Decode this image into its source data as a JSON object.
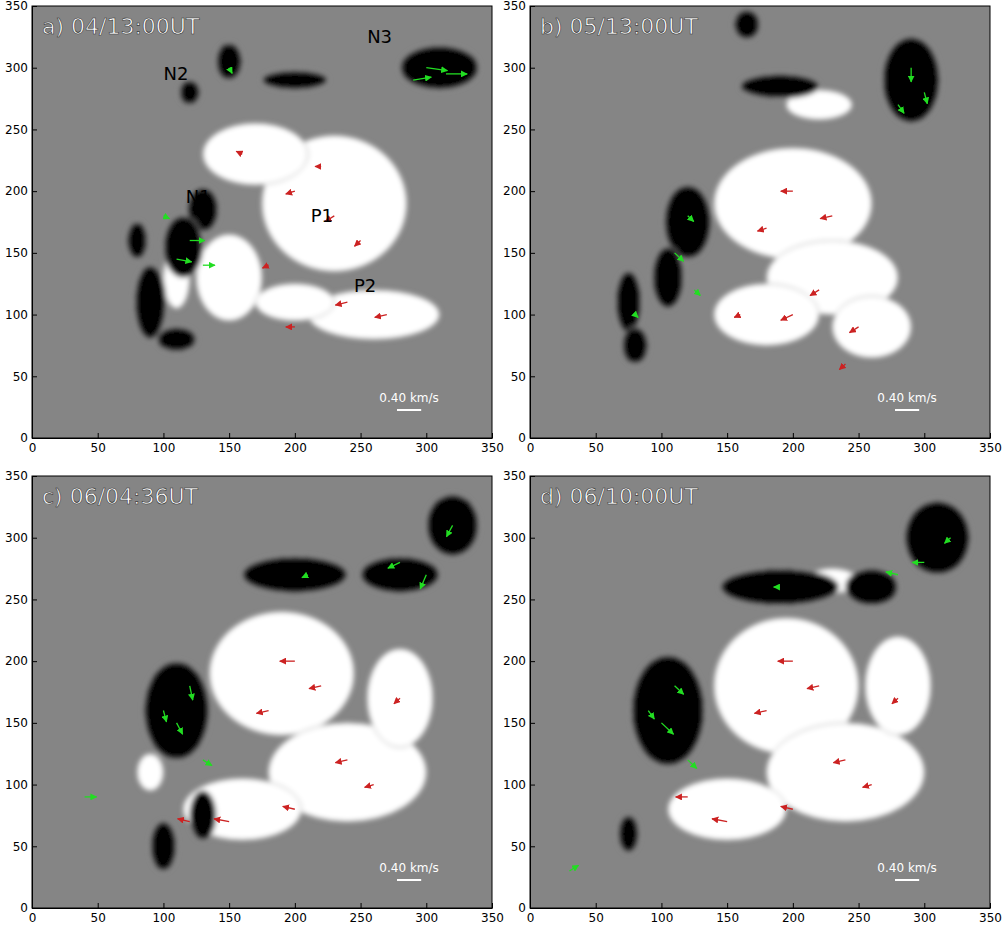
{
  "chart_data": [
    {
      "type": "vector_field",
      "title": "a) 04/13:00UT",
      "xlim": [
        0,
        350
      ],
      "ylim": [
        0,
        350
      ],
      "xticks": [
        0,
        50,
        100,
        150,
        200,
        250,
        300,
        350
      ],
      "yticks": [
        0,
        50,
        100,
        150,
        200,
        250,
        300,
        350
      ],
      "patches": [
        {
          "x": 230,
          "y": 190,
          "rx": 55,
          "ry": 55,
          "color": "white"
        },
        {
          "x": 170,
          "y": 230,
          "rx": 40,
          "ry": 25,
          "color": "white"
        },
        {
          "x": 150,
          "y": 130,
          "rx": 25,
          "ry": 35,
          "color": "white"
        },
        {
          "x": 260,
          "y": 100,
          "rx": 50,
          "ry": 20,
          "color": "white"
        },
        {
          "x": 200,
          "y": 110,
          "rx": 30,
          "ry": 15,
          "color": "white"
        },
        {
          "x": 110,
          "y": 130,
          "rx": 10,
          "ry": 25,
          "color": "white"
        },
        {
          "x": 310,
          "y": 300,
          "rx": 30,
          "ry": 18,
          "color": "black"
        },
        {
          "x": 150,
          "y": 305,
          "rx": 10,
          "ry": 15,
          "color": "black"
        },
        {
          "x": 120,
          "y": 280,
          "rx": 8,
          "ry": 10,
          "color": "black"
        },
        {
          "x": 200,
          "y": 290,
          "rx": 25,
          "ry": 8,
          "color": "black"
        },
        {
          "x": 130,
          "y": 185,
          "rx": 12,
          "ry": 18,
          "color": "black"
        },
        {
          "x": 115,
          "y": 155,
          "rx": 15,
          "ry": 25,
          "color": "black"
        },
        {
          "x": 80,
          "y": 160,
          "rx": 8,
          "ry": 15,
          "color": "black"
        },
        {
          "x": 90,
          "y": 110,
          "rx": 12,
          "ry": 30,
          "color": "black"
        },
        {
          "x": 110,
          "y": 80,
          "rx": 15,
          "ry": 10,
          "color": "black"
        }
      ],
      "vectors": [
        {
          "color": "#22dd22",
          "x": [
            300,
            315,
            290,
            120,
            110,
            130,
            100,
            150
          ],
          "y": [
            300,
            295,
            290,
            160,
            145,
            140,
            180,
            300
          ],
          "u": [
            0.35,
            0.35,
            0.3,
            0.25,
            0.25,
            0.2,
            0.1,
            0.05
          ],
          "v": [
            -0.05,
            0,
            0.05,
            0,
            -0.05,
            0,
            -0.05,
            -0.1
          ]
        },
        {
          "color": "#cc2222",
          "x": [
            200,
            230,
            250,
            180,
            220,
            240,
            270,
            160,
            200
          ],
          "y": [
            200,
            180,
            160,
            140,
            220,
            110,
            100,
            230,
            90
          ],
          "u": [
            -0.15,
            -0.15,
            -0.1,
            -0.1,
            -0.1,
            -0.2,
            -0.2,
            -0.1,
            -0.15
          ],
          "v": [
            -0.05,
            -0.1,
            -0.1,
            -0.05,
            0,
            -0.05,
            -0.05,
            0.05,
            0
          ]
        }
      ],
      "labels": [
        {
          "text": "N1",
          "x": 117,
          "y": 190
        },
        {
          "text": "N2",
          "x": 100,
          "y": 290
        },
        {
          "text": "N3",
          "x": 255,
          "y": 320
        },
        {
          "text": "P1",
          "x": 212,
          "y": 175
        },
        {
          "text": "P2",
          "x": 245,
          "y": 118
        }
      ],
      "scale": {
        "value": 0.4,
        "label": "0.40 km/s"
      }
    },
    {
      "type": "vector_field",
      "title": "b) 05/13:00UT",
      "xlim": [
        0,
        350
      ],
      "ylim": [
        0,
        350
      ],
      "xticks": [
        0,
        50,
        100,
        150,
        200,
        250,
        300,
        350
      ],
      "yticks": [
        0,
        50,
        100,
        150,
        200,
        250,
        300,
        350
      ],
      "patches": [
        {
          "x": 200,
          "y": 190,
          "rx": 60,
          "ry": 45,
          "color": "white"
        },
        {
          "x": 230,
          "y": 130,
          "rx": 50,
          "ry": 30,
          "color": "white"
        },
        {
          "x": 180,
          "y": 100,
          "rx": 40,
          "ry": 25,
          "color": "white"
        },
        {
          "x": 260,
          "y": 90,
          "rx": 30,
          "ry": 25,
          "color": "white"
        },
        {
          "x": 220,
          "y": 270,
          "rx": 25,
          "ry": 12,
          "color": "white"
        },
        {
          "x": 290,
          "y": 290,
          "rx": 22,
          "ry": 35,
          "color": "black"
        },
        {
          "x": 165,
          "y": 335,
          "rx": 10,
          "ry": 12,
          "color": "black"
        },
        {
          "x": 190,
          "y": 285,
          "rx": 30,
          "ry": 10,
          "color": "black"
        },
        {
          "x": 120,
          "y": 175,
          "rx": 18,
          "ry": 30,
          "color": "black"
        },
        {
          "x": 105,
          "y": 130,
          "rx": 12,
          "ry": 25,
          "color": "black"
        },
        {
          "x": 75,
          "y": 110,
          "rx": 10,
          "ry": 25,
          "color": "black"
        },
        {
          "x": 80,
          "y": 75,
          "rx": 10,
          "ry": 15,
          "color": "black"
        }
      ],
      "vectors": [
        {
          "color": "#22dd22",
          "x": [
            290,
            300,
            280,
            120,
            110,
            125,
            80
          ],
          "y": [
            300,
            280,
            270,
            180,
            150,
            120,
            100
          ],
          "u": [
            0,
            0.05,
            0.1,
            0.1,
            0.15,
            0.1,
            0.05
          ],
          "v": [
            -0.25,
            -0.2,
            -0.15,
            -0.1,
            -0.15,
            -0.1,
            -0.05
          ]
        },
        {
          "color": "#cc2222",
          "x": [
            200,
            230,
            180,
            220,
            250,
            200,
            160,
            240
          ],
          "y": [
            200,
            180,
            170,
            120,
            90,
            100,
            100,
            60
          ],
          "u": [
            -0.2,
            -0.2,
            -0.15,
            -0.15,
            -0.15,
            -0.2,
            -0.1,
            -0.1
          ],
          "v": [
            0,
            -0.05,
            -0.05,
            -0.1,
            -0.1,
            -0.1,
            -0.05,
            -0.1
          ]
        }
      ],
      "labels": [],
      "scale": {
        "value": 0.4,
        "label": "0.40 km/s"
      }
    },
    {
      "type": "vector_field",
      "title": "c) 06/04:36UT",
      "xlim": [
        0,
        350
      ],
      "ylim": [
        0,
        350
      ],
      "xticks": [
        0,
        50,
        100,
        150,
        200,
        250,
        300,
        350
      ],
      "yticks": [
        0,
        50,
        100,
        150,
        200,
        250,
        300,
        350
      ],
      "patches": [
        {
          "x": 190,
          "y": 190,
          "rx": 55,
          "ry": 50,
          "color": "white"
        },
        {
          "x": 240,
          "y": 110,
          "rx": 60,
          "ry": 40,
          "color": "white"
        },
        {
          "x": 160,
          "y": 80,
          "rx": 45,
          "ry": 25,
          "color": "white"
        },
        {
          "x": 90,
          "y": 110,
          "rx": 10,
          "ry": 15,
          "color": "white"
        },
        {
          "x": 280,
          "y": 170,
          "rx": 25,
          "ry": 40,
          "color": "white"
        },
        {
          "x": 320,
          "y": 310,
          "rx": 20,
          "ry": 25,
          "color": "black"
        },
        {
          "x": 280,
          "y": 270,
          "rx": 30,
          "ry": 15,
          "color": "black"
        },
        {
          "x": 200,
          "y": 270,
          "rx": 40,
          "ry": 15,
          "color": "black"
        },
        {
          "x": 110,
          "y": 160,
          "rx": 25,
          "ry": 40,
          "color": "black"
        },
        {
          "x": 130,
          "y": 75,
          "rx": 10,
          "ry": 20,
          "color": "black"
        },
        {
          "x": 100,
          "y": 50,
          "rx": 10,
          "ry": 20,
          "color": "black"
        }
      ],
      "vectors": [
        {
          "color": "#22dd22",
          "x": [
            320,
            300,
            280,
            120,
            110,
            130,
            100,
            210,
            40
          ],
          "y": [
            310,
            270,
            280,
            180,
            150,
            120,
            160,
            270,
            90
          ],
          "u": [
            -0.1,
            -0.1,
            -0.2,
            0.05,
            0.1,
            0.15,
            0.05,
            -0.1,
            0.2
          ],
          "v": [
            -0.2,
            -0.25,
            -0.1,
            -0.25,
            -0.2,
            -0.1,
            -0.2,
            -0.05,
            0
          ]
        },
        {
          "color": "#cc2222",
          "x": [
            200,
            220,
            180,
            240,
            260,
            200,
            150,
            120,
            280
          ],
          "y": [
            200,
            180,
            160,
            120,
            100,
            80,
            70,
            70,
            170
          ],
          "u": [
            -0.25,
            -0.2,
            -0.2,
            -0.2,
            -0.15,
            -0.2,
            -0.25,
            -0.2,
            -0.1
          ],
          "v": [
            0,
            -0.05,
            -0.05,
            -0.05,
            -0.05,
            0.05,
            0.05,
            0.05,
            -0.1
          ]
        }
      ],
      "labels": [],
      "scale": {
        "value": 0.4,
        "label": "0.40 km/s"
      }
    },
    {
      "type": "vector_field",
      "title": "d) 06/10:00UT",
      "xlim": [
        0,
        350
      ],
      "ylim": [
        0,
        350
      ],
      "xticks": [
        0,
        50,
        100,
        150,
        200,
        250,
        300,
        350
      ],
      "yticks": [
        0,
        50,
        100,
        150,
        200,
        250,
        300,
        350
      ],
      "patches": [
        {
          "x": 195,
          "y": 180,
          "rx": 55,
          "ry": 55,
          "color": "white"
        },
        {
          "x": 240,
          "y": 110,
          "rx": 60,
          "ry": 40,
          "color": "white"
        },
        {
          "x": 150,
          "y": 80,
          "rx": 45,
          "ry": 25,
          "color": "white"
        },
        {
          "x": 280,
          "y": 180,
          "rx": 25,
          "ry": 40,
          "color": "white"
        },
        {
          "x": 230,
          "y": 265,
          "rx": 20,
          "ry": 10,
          "color": "white"
        },
        {
          "x": 310,
          "y": 300,
          "rx": 25,
          "ry": 30,
          "color": "black"
        },
        {
          "x": 260,
          "y": 260,
          "rx": 20,
          "ry": 15,
          "color": "black"
        },
        {
          "x": 190,
          "y": 260,
          "rx": 45,
          "ry": 15,
          "color": "black"
        },
        {
          "x": 105,
          "y": 160,
          "rx": 28,
          "ry": 45,
          "color": "black"
        },
        {
          "x": 75,
          "y": 60,
          "rx": 8,
          "ry": 15,
          "color": "black"
        }
      ],
      "vectors": [
        {
          "color": "#22dd22",
          "x": [
            300,
            320,
            280,
            110,
            100,
            120,
            90,
            190,
            30
          ],
          "y": [
            280,
            300,
            270,
            180,
            150,
            120,
            160,
            260,
            30
          ],
          "u": [
            -0.2,
            -0.1,
            -0.2,
            0.15,
            0.2,
            0.15,
            0.1,
            -0.1,
            0.15
          ],
          "v": [
            0,
            -0.1,
            0.05,
            -0.15,
            -0.2,
            -0.15,
            -0.15,
            0,
            0.1
          ]
        },
        {
          "color": "#cc2222",
          "x": [
            200,
            220,
            180,
            240,
            260,
            200,
            150,
            120,
            280
          ],
          "y": [
            200,
            180,
            160,
            120,
            100,
            80,
            70,
            90,
            170
          ],
          "u": [
            -0.25,
            -0.2,
            -0.2,
            -0.2,
            -0.15,
            -0.2,
            -0.25,
            -0.2,
            -0.1
          ],
          "v": [
            0,
            -0.05,
            -0.05,
            -0.05,
            -0.05,
            0.05,
            0.05,
            0,
            -0.1
          ]
        }
      ],
      "labels": [],
      "scale": {
        "value": 0.4,
        "label": "0.40 km/s"
      }
    }
  ]
}
